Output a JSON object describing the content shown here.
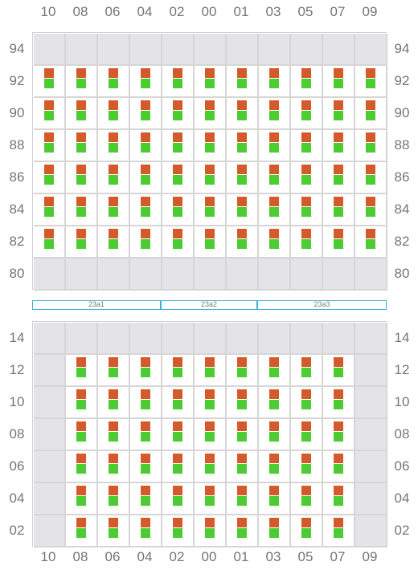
{
  "columns": [
    "10",
    "08",
    "06",
    "04",
    "02",
    "00",
    "01",
    "03",
    "05",
    "07",
    "09"
  ],
  "colors": {
    "grid_line": "#d6d6d6",
    "empty_cell": "#e4e4e8",
    "marker_top": "#d45a2a",
    "marker_bottom": "#4ccc33",
    "zone_border": "#3bb3d8",
    "label_text": "#757575"
  },
  "upper_block": {
    "rows": [
      "94",
      "92",
      "90",
      "88",
      "86",
      "84",
      "82",
      "80"
    ],
    "empty_rows": [
      "94",
      "80"
    ],
    "empty_cols": []
  },
  "lower_block": {
    "rows": [
      "14",
      "12",
      "10",
      "08",
      "06",
      "04",
      "02"
    ],
    "empty_rows": [
      "14"
    ],
    "empty_cols": [
      "10",
      "09"
    ]
  },
  "zones": [
    "23a1",
    "23a2",
    "23a3"
  ]
}
